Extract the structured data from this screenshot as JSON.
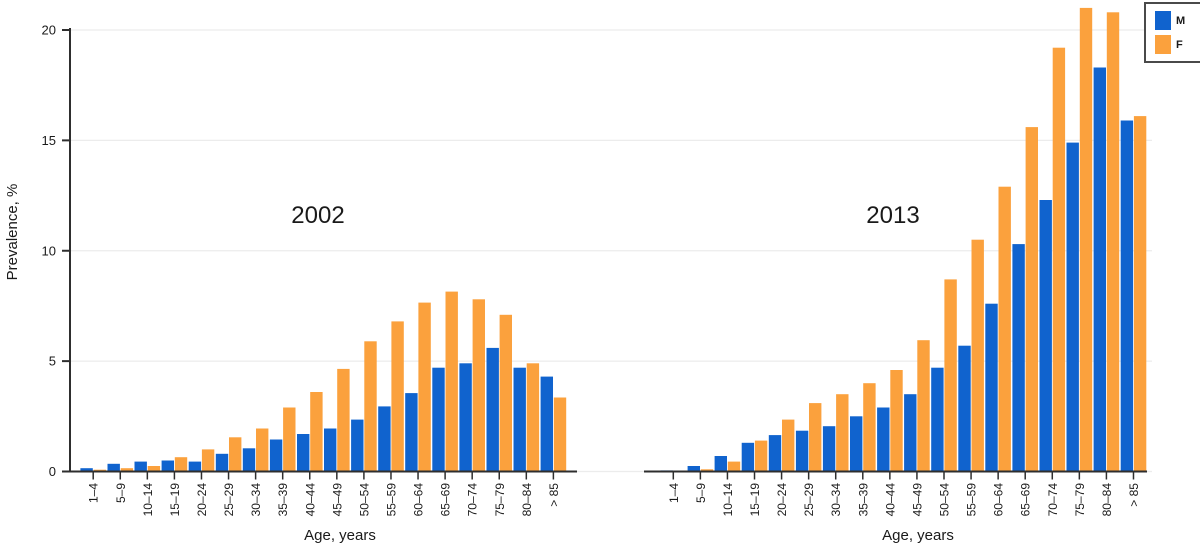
{
  "figure": {
    "y_axis_label": "Prevalence, %",
    "x_axis_label": "Age, years",
    "legend": [
      {
        "label": "M",
        "color": "#1063CE"
      },
      {
        "label": "F",
        "color": "#FBA13D"
      }
    ],
    "colors": {
      "male": "#1063CE",
      "female": "#FBA13D",
      "axis": "#2e2e2e",
      "gridline": "#ececec"
    }
  },
  "chart_data": [
    {
      "type": "bar",
      "title": "2002",
      "xlabel": "Age, years",
      "ylabel": "Prevalence, %",
      "ylim": [
        0,
        21
      ],
      "yticks": [
        0,
        5,
        10,
        15,
        20
      ],
      "grid": true,
      "legend_position": "top-right",
      "categories": [
        "1–4",
        "5–9",
        "10–14",
        "15–19",
        "20–24",
        "25–29",
        "30–34",
        "35–39",
        "40–44",
        "45–49",
        "50–54",
        "55–59",
        "60–64",
        "65–69",
        "70–74",
        "75–79",
        "80–84",
        "> 85"
      ],
      "series": [
        {
          "name": "M",
          "values": [
            0.15,
            0.35,
            0.45,
            0.5,
            0.45,
            0.8,
            1.05,
            1.45,
            1.7,
            1.95,
            2.35,
            2.95,
            3.55,
            4.7,
            4.9,
            5.6,
            4.7,
            4.3
          ]
        },
        {
          "name": "F",
          "values": [
            0.08,
            0.15,
            0.25,
            0.65,
            1.0,
            1.55,
            1.95,
            2.9,
            3.6,
            4.65,
            5.9,
            6.8,
            7.65,
            8.15,
            7.8,
            7.1,
            4.9,
            3.35
          ]
        }
      ]
    },
    {
      "type": "bar",
      "title": "2013",
      "xlabel": "Age, years",
      "ylabel": "Prevalence, %",
      "ylim": [
        0,
        21
      ],
      "yticks": [
        0,
        5,
        10,
        15,
        20
      ],
      "grid": true,
      "legend_position": "top-right",
      "categories": [
        "1–4",
        "5–9",
        "10–14",
        "15–19",
        "20–24",
        "25–29",
        "30–34",
        "35–39",
        "40–44",
        "45–49",
        "50–54",
        "55–59",
        "60–64",
        "65–69",
        "70–74",
        "75–79",
        "80–84",
        "> 85"
      ],
      "series": [
        {
          "name": "M",
          "values": [
            0.05,
            0.25,
            0.7,
            1.3,
            1.65,
            1.85,
            2.05,
            2.5,
            2.9,
            3.5,
            4.7,
            5.7,
            7.6,
            10.3,
            12.3,
            14.9,
            18.3,
            15.9
          ]
        },
        {
          "name": "F",
          "values": [
            0.03,
            0.1,
            0.45,
            1.4,
            2.35,
            3.1,
            3.5,
            4.0,
            4.6,
            5.95,
            8.7,
            10.5,
            12.9,
            15.6,
            19.2,
            21.0,
            20.8,
            16.1
          ]
        }
      ]
    }
  ]
}
